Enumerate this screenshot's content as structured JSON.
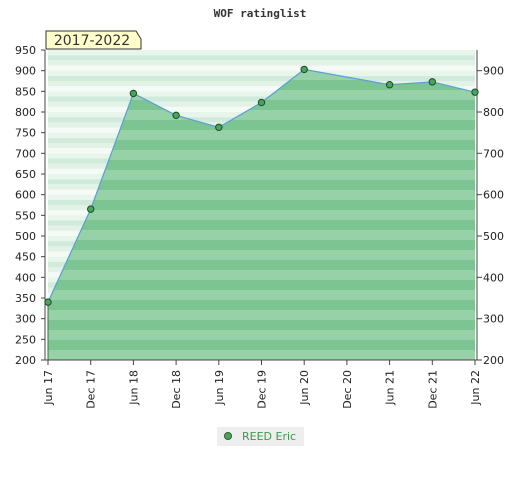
{
  "chart_data": {
    "type": "area",
    "title": "WOF ratinglist",
    "range_label": "2017-2022",
    "categories": [
      "Jun 17",
      "Dec 17",
      "Jun 18",
      "Dec 18",
      "Jun 19",
      "Dec 19",
      "Jun 20",
      "Dec 20",
      "Jun 21",
      "Dec 21",
      "Jun 22"
    ],
    "x_positions": [
      0,
      1,
      2,
      3,
      4,
      5,
      6,
      7,
      8,
      9,
      10
    ],
    "series": [
      {
        "name": "REED Eric",
        "x": [
          0,
          1,
          2,
          3,
          4,
          5,
          6,
          8,
          9,
          10
        ],
        "values": [
          340,
          565,
          845,
          792,
          763,
          823,
          903,
          866,
          873,
          848
        ]
      }
    ],
    "y_left_ticks": [
      200,
      250,
      300,
      350,
      400,
      450,
      500,
      550,
      600,
      650,
      700,
      750,
      800,
      850,
      900,
      950
    ],
    "y_right_ticks": [
      200,
      300,
      400,
      500,
      600,
      700,
      800,
      900
    ],
    "ylim": [
      200,
      950
    ],
    "legend_position": "bottom-center",
    "colors": {
      "line": "#5a9fd4",
      "fill": "#6fc08a",
      "marker": "#4aa45a",
      "legend_text": "#3a9a4a",
      "range_box_bg": "#ffffcc"
    }
  }
}
